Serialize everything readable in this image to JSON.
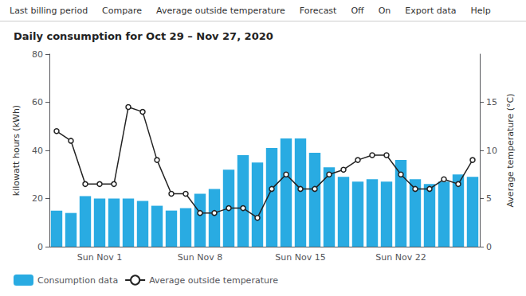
{
  "chart_data": {
    "type": "bar",
    "title": "Daily consumption for Oct 29 – Nov 27, 2020",
    "annotations": [
      "Last billing period",
      "Compare",
      "Average outside temperature",
      "Forecast",
      "Off",
      "On",
      "Export data",
      "Help"
    ],
    "ylabel": "kilowatt hours (kWh)",
    "y2label": "Average temperature (°C)",
    "categories": [
      null,
      null,
      null,
      "Sun Nov 1",
      null,
      null,
      null,
      null,
      null,
      null,
      "Sun Nov 8",
      null,
      null,
      null,
      null,
      null,
      null,
      "Sun Nov 15",
      null,
      null,
      null,
      null,
      null,
      null,
      "Sun Nov 22",
      null,
      null,
      null,
      null,
      null
    ],
    "series": [
      {
        "name": "Consumption data",
        "type": "bar",
        "color": "#29ABE2",
        "values": [
          15,
          14,
          21,
          20,
          20,
          20,
          19,
          17,
          15,
          16,
          22,
          24,
          32,
          38,
          35,
          41,
          45,
          45,
          39,
          33,
          29,
          27,
          28,
          27,
          36,
          28,
          26,
          27,
          30,
          29
        ]
      },
      {
        "name": "Average outside temperature",
        "type": "line",
        "axis": "y2",
        "color": "#222222",
        "marker": "circle",
        "values": [
          12,
          11,
          6.5,
          6.5,
          6.5,
          14.5,
          14,
          9,
          5.5,
          5.5,
          3.5,
          3.5,
          4,
          4,
          3,
          6,
          7.5,
          6,
          6,
          7.5,
          8,
          9,
          9.5,
          9.5,
          7.5,
          6,
          6,
          7,
          6.5,
          9
        ]
      }
    ],
    "ylim": [
      0,
      80
    ],
    "yticks": [
      0,
      20,
      40,
      60,
      80
    ],
    "y2lim": [
      0,
      20
    ],
    "y2ticks": [
      0,
      5,
      10,
      15
    ],
    "grid": false,
    "legend": "bottom"
  }
}
